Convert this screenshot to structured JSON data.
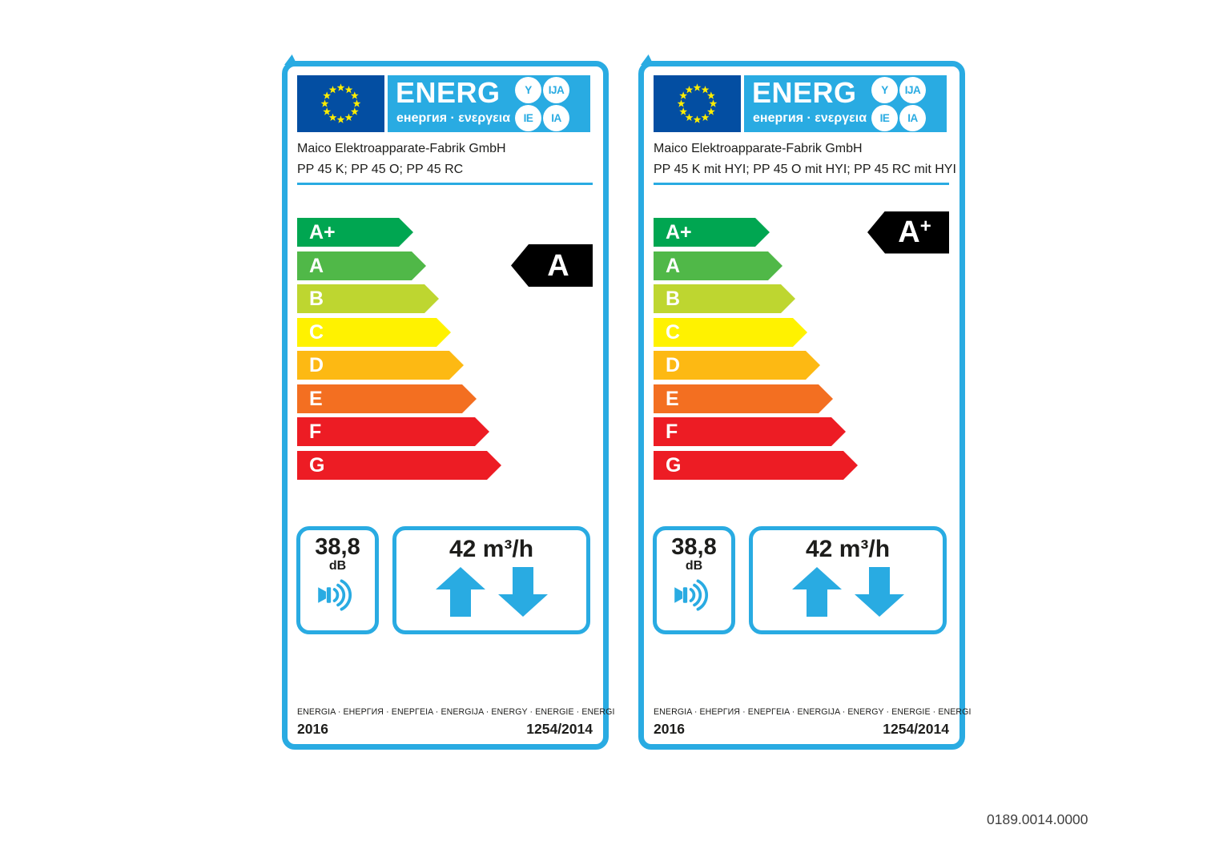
{
  "page": {
    "background": "#FFFFFF",
    "document_code": "0189.0014.0000"
  },
  "colors": {
    "accent_cyan": "#29ABE2",
    "eu_flag_blue": "#034EA2",
    "star_yellow": "#FFED00",
    "rating_arrow_black": "#000000",
    "text_black": "#1D1D1B"
  },
  "logo": {
    "title": "ENERG",
    "subtitle": "енергия · ενεργεια",
    "badges": [
      "Y",
      "IJA",
      "IE",
      "IA"
    ]
  },
  "icons": {
    "noise": "speaker-icon",
    "airflow_up": "arrow-up-icon",
    "airflow_down": "arrow-down-icon",
    "flag": "eu-stars-icon"
  },
  "scale": [
    {
      "grade": "A+",
      "color": "#00A651"
    },
    {
      "grade": "A",
      "color": "#50B848"
    },
    {
      "grade": "B",
      "color": "#BED630"
    },
    {
      "grade": "C",
      "color": "#FFF200"
    },
    {
      "grade": "D",
      "color": "#FDB913"
    },
    {
      "grade": "E",
      "color": "#F36F21"
    },
    {
      "grade": "F",
      "color": "#ED1C24"
    },
    {
      "grade": "G",
      "color": "#ED1C24"
    }
  ],
  "labels": [
    {
      "supplier": "Maico Elektroapparate-Fabrik GmbH",
      "model": "PP 45 K; PP 45 O; PP 45 RC",
      "rating_letter": "A",
      "rating_plus": "",
      "rating_row": 1,
      "noise_value": "38,8",
      "noise_unit": "dB",
      "airflow_value": "42 m³/h",
      "energy_words": "ENERGIA · ЕНЕРГИЯ · ΕΝΕΡΓΕΙΑ · ENERGIJA · ENERGY · ENERGIE · ENERGI",
      "year": "2016",
      "regulation": "1254/2014"
    },
    {
      "supplier": "Maico Elektroapparate-Fabrik GmbH",
      "model": "PP 45 K mit HYI; PP 45 O mit HYI; PP 45 RC mit HYI",
      "rating_letter": "A",
      "rating_plus": "+",
      "rating_row": 0,
      "noise_value": "38,8",
      "noise_unit": "dB",
      "airflow_value": "42 m³/h",
      "energy_words": "ENERGIA · ЕНЕРГИЯ · ΕΝΕΡΓΕΙΑ · ENERGIJA · ENERGY · ENERGIE · ENERGI",
      "year": "2016",
      "regulation": "1254/2014"
    }
  ]
}
